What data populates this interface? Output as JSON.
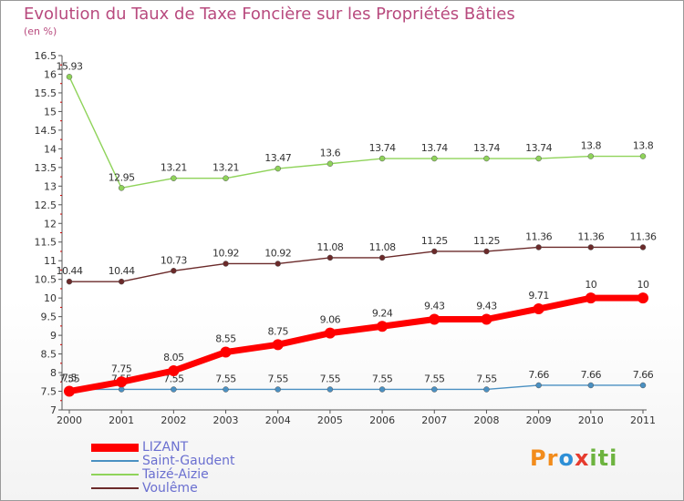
{
  "title": "Evolution du Taux de Taxe Foncière sur les Propriétés Bâties",
  "unit_label": "(en %)",
  "logo": {
    "text": "Proxiti",
    "letters": [
      "P",
      "r",
      "o",
      "x",
      "i",
      "t",
      "i"
    ],
    "colors": [
      "#f28c1c",
      "#f28c1c",
      "#2e8fd6",
      "#e63b2e",
      "#6db33f",
      "#6db33f",
      "#6db33f"
    ]
  },
  "chart_data": {
    "type": "line",
    "x": [
      "2000",
      "2001",
      "2002",
      "2003",
      "2004",
      "2005",
      "2006",
      "2007",
      "2008",
      "2009",
      "2010",
      "2011"
    ],
    "ylim": [
      7,
      16.5
    ],
    "ytick_labels": [
      "7",
      "7.5",
      "8",
      "8.5",
      "9",
      "9.5",
      "10",
      "10.5",
      "11",
      "11.5",
      "12",
      "12.5",
      "13",
      "13.5",
      "14",
      "14.5",
      "15",
      "15.5",
      "16",
      "16.5"
    ],
    "series": [
      {
        "name": "Taizé-Aizie",
        "color": "#8fd35a",
        "labels": [
          "15.93",
          "12.95",
          "13.21",
          "13.21",
          "13.47",
          "13.6",
          "13.74",
          "13.74",
          "13.74",
          "13.74",
          "13.8",
          "13.8"
        ],
        "values": [
          15.93,
          12.95,
          13.21,
          13.21,
          13.47,
          13.6,
          13.74,
          13.74,
          13.74,
          13.74,
          13.8,
          13.8
        ]
      },
      {
        "name": "Voulême",
        "color": "#6b2a2a",
        "labels": [
          "10.44",
          "10.44",
          "10.73",
          "10.92",
          "10.92",
          "11.08",
          "11.08",
          "11.25",
          "11.25",
          "11.36",
          "11.36",
          "11.36"
        ],
        "values": [
          10.44,
          10.44,
          10.73,
          10.92,
          10.92,
          11.08,
          11.08,
          11.25,
          11.25,
          11.36,
          11.36,
          11.36
        ]
      },
      {
        "name": "Saint-Gaudent",
        "color": "#4a90c2",
        "labels": [
          "7.55",
          "7.55",
          "7.55",
          "7.55",
          "7.55",
          "7.55",
          "7.55",
          "7.55",
          "7.55",
          "7.66",
          "7.66",
          "7.66"
        ],
        "values": [
          7.55,
          7.55,
          7.55,
          7.55,
          7.55,
          7.55,
          7.55,
          7.55,
          7.55,
          7.66,
          7.66,
          7.66
        ]
      },
      {
        "name": "LIZANT",
        "color": "#ff0000",
        "labels": [
          "7.5",
          "7.75",
          "8.05",
          "8.55",
          "8.75",
          "9.06",
          "9.24",
          "9.43",
          "9.43",
          "9.71",
          "10",
          "10"
        ],
        "values": [
          7.5,
          7.75,
          8.05,
          8.55,
          8.75,
          9.06,
          9.24,
          9.43,
          9.43,
          9.71,
          10,
          10
        ]
      }
    ],
    "legend": [
      {
        "name": "LIZANT",
        "color": "#ff0000"
      },
      {
        "name": "Saint-Gaudent",
        "color": "#4a90c2"
      },
      {
        "name": "Taizé-Aizie",
        "color": "#8fd35a"
      },
      {
        "name": "Voulême",
        "color": "#6b2a2a"
      }
    ],
    "legend_position": "bottom-left"
  }
}
